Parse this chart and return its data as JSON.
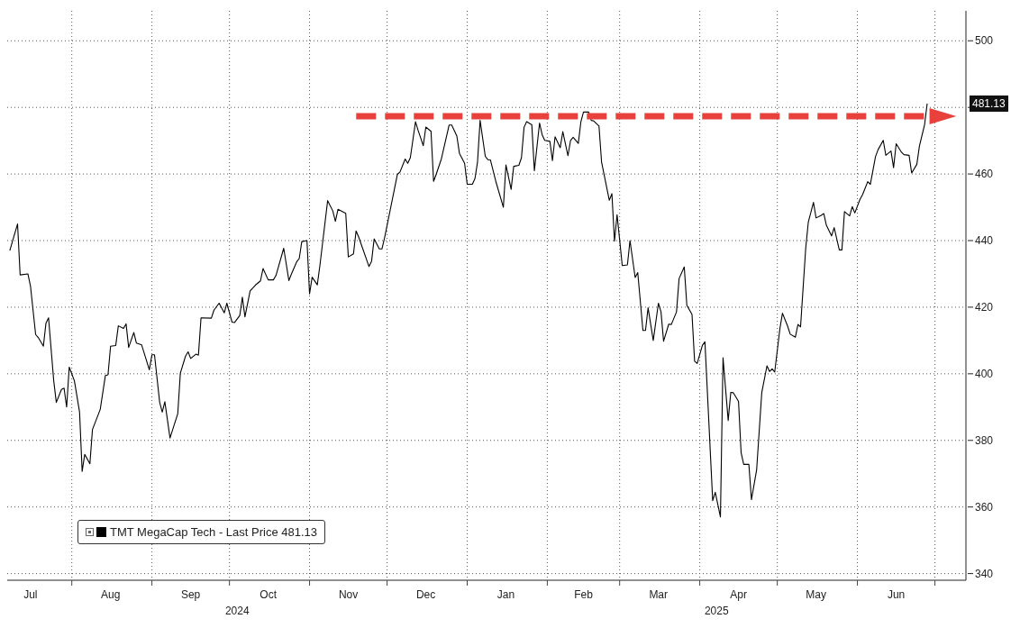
{
  "chart_data": {
    "type": "line",
    "x": [
      "2024-07-08",
      "2024-07-11",
      "2024-07-12",
      "2024-07-15",
      "2024-07-16",
      "2024-07-18",
      "2024-07-19",
      "2024-07-21",
      "2024-07-22",
      "2024-07-23",
      "2024-07-25",
      "2024-07-26",
      "2024-07-28",
      "2024-07-29",
      "2024-07-30",
      "2024-07-31",
      "2024-08-02",
      "2024-08-04",
      "2024-08-05",
      "2024-08-06",
      "2024-08-08",
      "2024-08-09",
      "2024-08-12",
      "2024-08-14",
      "2024-08-15",
      "2024-08-16",
      "2024-08-18",
      "2024-08-19",
      "2024-08-21",
      "2024-08-22",
      "2024-08-23",
      "2024-08-25",
      "2024-08-26",
      "2024-08-28",
      "2024-08-31",
      "2024-09-01",
      "2024-09-02",
      "2024-09-04",
      "2024-09-05",
      "2024-09-06",
      "2024-09-08",
      "2024-09-11",
      "2024-09-12",
      "2024-09-14",
      "2024-09-15",
      "2024-09-16",
      "2024-09-18",
      "2024-09-19",
      "2024-09-20",
      "2024-09-24",
      "2024-09-25",
      "2024-09-27",
      "2024-09-29",
      "2024-09-30",
      "2024-10-02",
      "2024-10-03",
      "2024-10-05",
      "2024-10-06",
      "2024-10-07",
      "2024-10-09",
      "2024-10-11",
      "2024-10-13",
      "2024-10-14",
      "2024-10-16",
      "2024-10-18",
      "2024-10-19",
      "2024-10-22",
      "2024-10-24",
      "2024-10-25",
      "2024-10-27",
      "2024-10-28",
      "2024-10-29",
      "2024-10-31",
      "2024-11-01",
      "2024-11-02",
      "2024-11-04",
      "2024-11-05",
      "2024-11-08",
      "2024-11-10",
      "2024-11-11",
      "2024-11-12",
      "2024-11-15",
      "2024-11-16",
      "2024-11-18",
      "2024-11-19",
      "2024-11-20",
      "2024-11-24",
      "2024-11-25",
      "2024-11-26",
      "2024-11-28",
      "2024-11-29",
      "2024-11-30",
      "2024-12-05",
      "2024-12-06",
      "2024-12-08",
      "2024-12-09",
      "2024-12-10",
      "2024-12-12",
      "2024-12-13",
      "2024-12-15",
      "2024-12-16",
      "2024-12-18",
      "2024-12-19",
      "2024-12-20",
      "2024-12-22",
      "2024-12-25",
      "2024-12-26",
      "2024-12-28",
      "2024-12-29",
      "2024-12-31",
      "2025-01-01",
      "2025-01-03",
      "2025-01-04",
      "2025-01-05",
      "2025-01-06",
      "2025-01-08",
      "2025-01-09",
      "2025-01-10",
      "2025-01-12",
      "2025-01-15",
      "2025-01-16",
      "2025-01-18",
      "2025-01-19",
      "2025-01-21",
      "2025-01-22",
      "2025-01-23",
      "2025-01-24",
      "2025-01-26",
      "2025-01-27",
      "2025-01-29",
      "2025-01-30",
      "2025-01-31",
      "2025-02-02",
      "2025-02-03",
      "2025-02-04",
      "2025-02-06",
      "2025-02-07",
      "2025-02-09",
      "2025-02-10",
      "2025-02-11",
      "2025-02-13",
      "2025-02-14",
      "2025-02-15",
      "2025-02-17",
      "2025-02-18",
      "2025-02-19",
      "2025-02-21",
      "2025-02-22",
      "2025-02-25",
      "2025-02-26",
      "2025-02-27",
      "2025-02-28",
      "2025-03-02",
      "2025-03-04",
      "2025-03-05",
      "2025-03-07",
      "2025-03-08",
      "2025-03-10",
      "2025-03-11",
      "2025-03-12",
      "2025-03-14",
      "2025-03-16",
      "2025-03-17",
      "2025-03-18",
      "2025-03-20",
      "2025-03-21",
      "2025-03-23",
      "2025-03-24",
      "2025-03-26",
      "2025-03-27",
      "2025-03-29",
      "2025-03-30",
      "2025-03-31",
      "2025-04-02",
      "2025-04-03",
      "2025-04-06",
      "2025-04-07",
      "2025-04-09",
      "2025-04-10",
      "2025-04-12",
      "2025-04-13",
      "2025-04-14",
      "2025-04-16",
      "2025-04-17",
      "2025-04-18",
      "2025-04-20",
      "2025-04-21",
      "2025-04-23",
      "2025-04-25",
      "2025-04-27",
      "2025-04-28",
      "2025-04-29",
      "2025-04-30",
      "2025-05-02",
      "2025-05-03",
      "2025-05-05",
      "2025-05-06",
      "2025-05-08",
      "2025-05-09",
      "2025-05-10",
      "2025-05-12",
      "2025-05-13",
      "2025-05-15",
      "2025-05-16",
      "2025-05-18",
      "2025-05-19",
      "2025-05-20",
      "2025-05-22",
      "2025-05-23",
      "2025-05-25",
      "2025-05-26",
      "2025-05-27",
      "2025-05-29",
      "2025-05-30",
      "2025-05-31",
      "2025-06-02",
      "2025-06-03",
      "2025-06-05",
      "2025-06-06",
      "2025-06-08",
      "2025-06-09",
      "2025-06-11",
      "2025-06-12",
      "2025-06-14",
      "2025-06-15",
      "2025-06-16",
      "2025-06-18",
      "2025-06-19",
      "2025-06-21",
      "2025-06-22",
      "2025-06-24",
      "2025-06-25",
      "2025-06-27",
      "2025-06-28"
    ],
    "series": [
      {
        "name": "TMT MegaCap Tech - Last Price 481.13",
        "color": "#000000",
        "values": [
          437,
          445,
          429.7,
          430,
          426.4,
          411.8,
          410.9,
          408.3,
          415.2,
          416.8,
          397.9,
          391.4,
          395.3,
          395.7,
          390,
          402,
          397.9,
          388.5,
          370.7,
          375.8,
          373,
          383.3,
          389.3,
          399.5,
          399.7,
          408.3,
          408.5,
          414.4,
          413.6,
          415,
          407.9,
          412.4,
          409.2,
          408.7,
          401.2,
          405.7,
          405.7,
          391.4,
          388.5,
          391.6,
          380.7,
          388,
          400.2,
          405.3,
          406.6,
          404.6,
          405.9,
          405.6,
          416.8,
          416.7,
          419.1,
          421.2,
          418.3,
          421.2,
          415.5,
          415.4,
          417.5,
          423,
          417.1,
          424.9,
          426.6,
          427.9,
          431.6,
          428.2,
          428.2,
          429.5,
          437.7,
          428,
          430,
          433.6,
          434.6,
          439.7,
          440,
          424,
          429,
          426.7,
          432.5,
          452,
          448.9,
          445.8,
          449.4,
          448.2,
          435.1,
          436,
          442.9,
          441.1,
          432.2,
          433.8,
          440.5,
          437.5,
          437.5,
          440.7,
          459.9,
          460.6,
          464.5,
          463.2,
          464.9,
          475.7,
          473.1,
          468.5,
          474.1,
          472.8,
          457.8,
          459.9,
          464.5,
          474.7,
          474.7,
          471.4,
          466.2,
          463.2,
          456.9,
          456.9,
          458.6,
          463.6,
          476.1,
          465.3,
          464.3,
          464.2,
          458,
          450,
          462.7,
          455.4,
          462.3,
          462.6,
          464.9,
          474,
          475.7,
          474.8,
          461,
          475.3,
          471.8,
          470.1,
          469.8,
          464,
          471.2,
          467.9,
          472.7,
          465.5,
          470.1,
          471,
          469.2,
          475.7,
          478.6,
          478.6,
          476.1,
          475.9,
          474.4,
          463.6,
          452.1,
          454.1,
          439.8,
          447.8,
          432.5,
          432.7,
          440,
          428.9,
          430.4,
          413,
          413,
          419.8,
          410,
          421.2,
          418.6,
          409.8,
          414.9,
          414.8,
          418.6,
          428.6,
          432.1,
          420.6,
          417.8,
          403.8,
          403.1,
          408.5,
          409.6,
          361.9,
          364.4,
          357,
          404.8,
          386,
          394.4,
          394.3,
          391.7,
          376.3,
          372.8,
          372.8,
          362.2,
          371.1,
          394.4,
          402.4,
          400.7,
          401.5,
          400.5,
          413.5,
          418.2,
          414.3,
          411.9,
          411,
          414.8,
          414.1,
          437.7,
          445.5,
          451.5,
          446.8,
          447.6,
          448.1,
          444.6,
          441.4,
          443.9,
          437.2,
          437.2,
          448.7,
          447.4,
          450.2,
          448.3,
          452.4,
          453.8,
          457.7,
          456.9,
          465.2,
          467.3,
          470.1,
          465.6,
          466.9,
          461.9,
          469.1,
          466.6,
          465.8,
          465.6,
          460.3,
          462.9,
          468.4,
          474.8,
          481.13
        ]
      }
    ],
    "xlim": [
      "2024-07-07",
      "2025-07-13"
    ],
    "xticks": [
      {
        "value": "2024-07-16",
        "label": "Jul"
      },
      {
        "value": "2024-08-01",
        "label": null
      },
      {
        "value": "2024-08-16",
        "label": "Aug"
      },
      {
        "value": "2024-09-01",
        "label": null
      },
      {
        "value": "2024-09-16",
        "label": "Sep"
      },
      {
        "value": "2024-10-01",
        "label": null
      },
      {
        "value": "2024-10-16",
        "label": "Oct"
      },
      {
        "value": "2024-11-01",
        "label": null
      },
      {
        "value": "2024-11-16",
        "label": "Nov"
      },
      {
        "value": "2024-12-01",
        "label": null
      },
      {
        "value": "2024-12-16",
        "label": "Dec"
      },
      {
        "value": "2025-01-01",
        "label": null
      },
      {
        "value": "2025-01-16",
        "label": "Jan"
      },
      {
        "value": "2025-02-01",
        "label": null
      },
      {
        "value": "2025-02-15",
        "label": "Feb"
      },
      {
        "value": "2025-03-01",
        "label": null
      },
      {
        "value": "2025-03-16",
        "label": "Mar"
      },
      {
        "value": "2025-04-01",
        "label": null
      },
      {
        "value": "2025-04-16",
        "label": "Apr"
      },
      {
        "value": "2025-05-01",
        "label": null
      },
      {
        "value": "2025-05-16",
        "label": "May"
      },
      {
        "value": "2025-06-01",
        "label": null
      },
      {
        "value": "2025-06-16",
        "label": "Jun"
      },
      {
        "value": "2025-07-01",
        "label": null
      }
    ],
    "ylim": [
      338,
      509
    ],
    "yticks": [
      340,
      360,
      380,
      400,
      420,
      440,
      460,
      {
        "value": 480,
        "label": null
      },
      500
    ],
    "grid": true,
    "legend": "bottom left",
    "line_style": "solid",
    "annotations": [
      "2024",
      "2025",
      "481.13"
    ]
  }
}
